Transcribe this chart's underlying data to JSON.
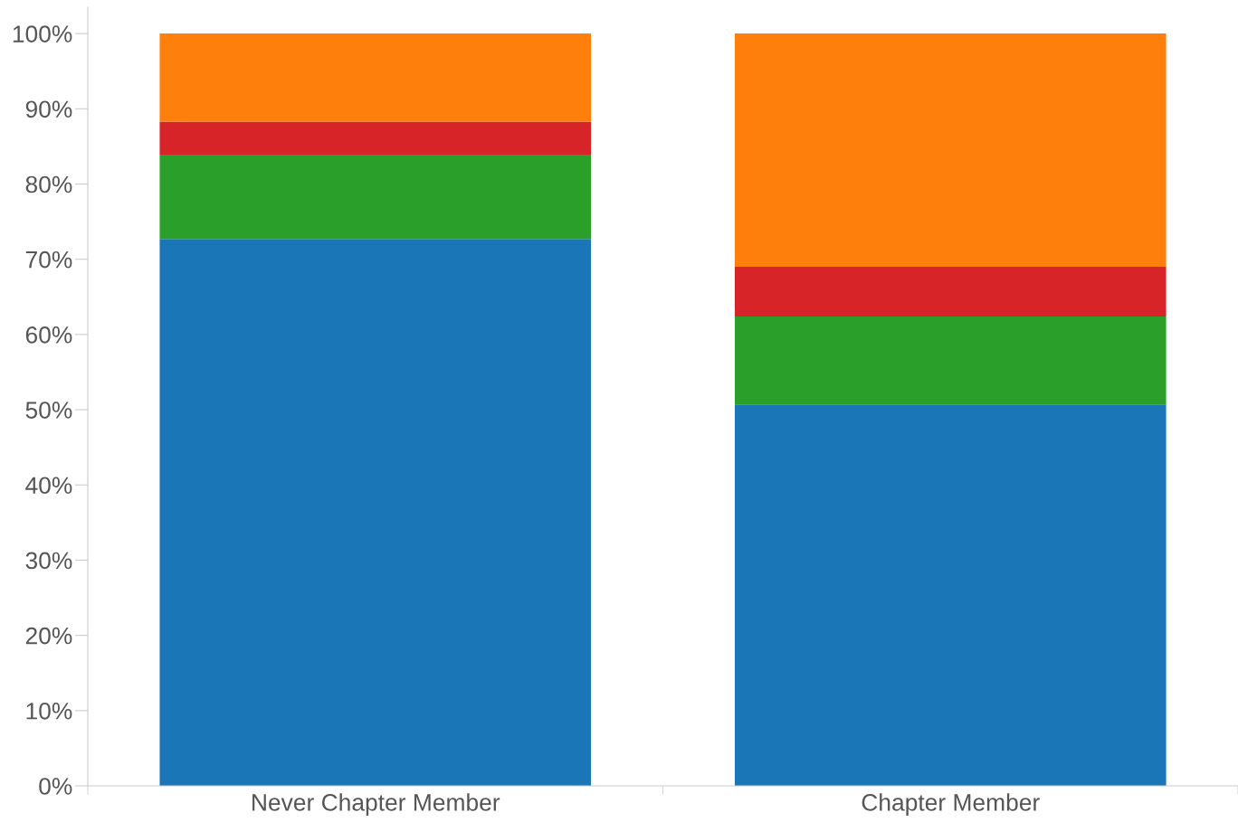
{
  "chart_data": {
    "type": "bar",
    "stacked": true,
    "categories": [
      "Never Chapter Member",
      "Chapter Member"
    ],
    "series": [
      {
        "color": "#1a76b6",
        "values": [
          72.7,
          50.7
        ]
      },
      {
        "color": "#2aa02b",
        "values": [
          11.2,
          11.7
        ]
      },
      {
        "color": "#d62428",
        "values": [
          4.4,
          6.6
        ]
      },
      {
        "color": "#ff7f0d",
        "values": [
          11.7,
          31.0
        ]
      }
    ],
    "ylim": [
      0,
      103.5
    ],
    "yticks": [
      {
        "value": 0,
        "label": "0%"
      },
      {
        "value": 10,
        "label": "10%"
      },
      {
        "value": 20,
        "label": "20%"
      },
      {
        "value": 30,
        "label": "30%"
      },
      {
        "value": 40,
        "label": "40%"
      },
      {
        "value": 50,
        "label": "50%"
      },
      {
        "value": 60,
        "label": "60%"
      },
      {
        "value": 70,
        "label": "70%"
      },
      {
        "value": 80,
        "label": "80%"
      },
      {
        "value": 90,
        "label": "90%"
      },
      {
        "value": 100,
        "label": "100%"
      }
    ],
    "grid": false
  }
}
